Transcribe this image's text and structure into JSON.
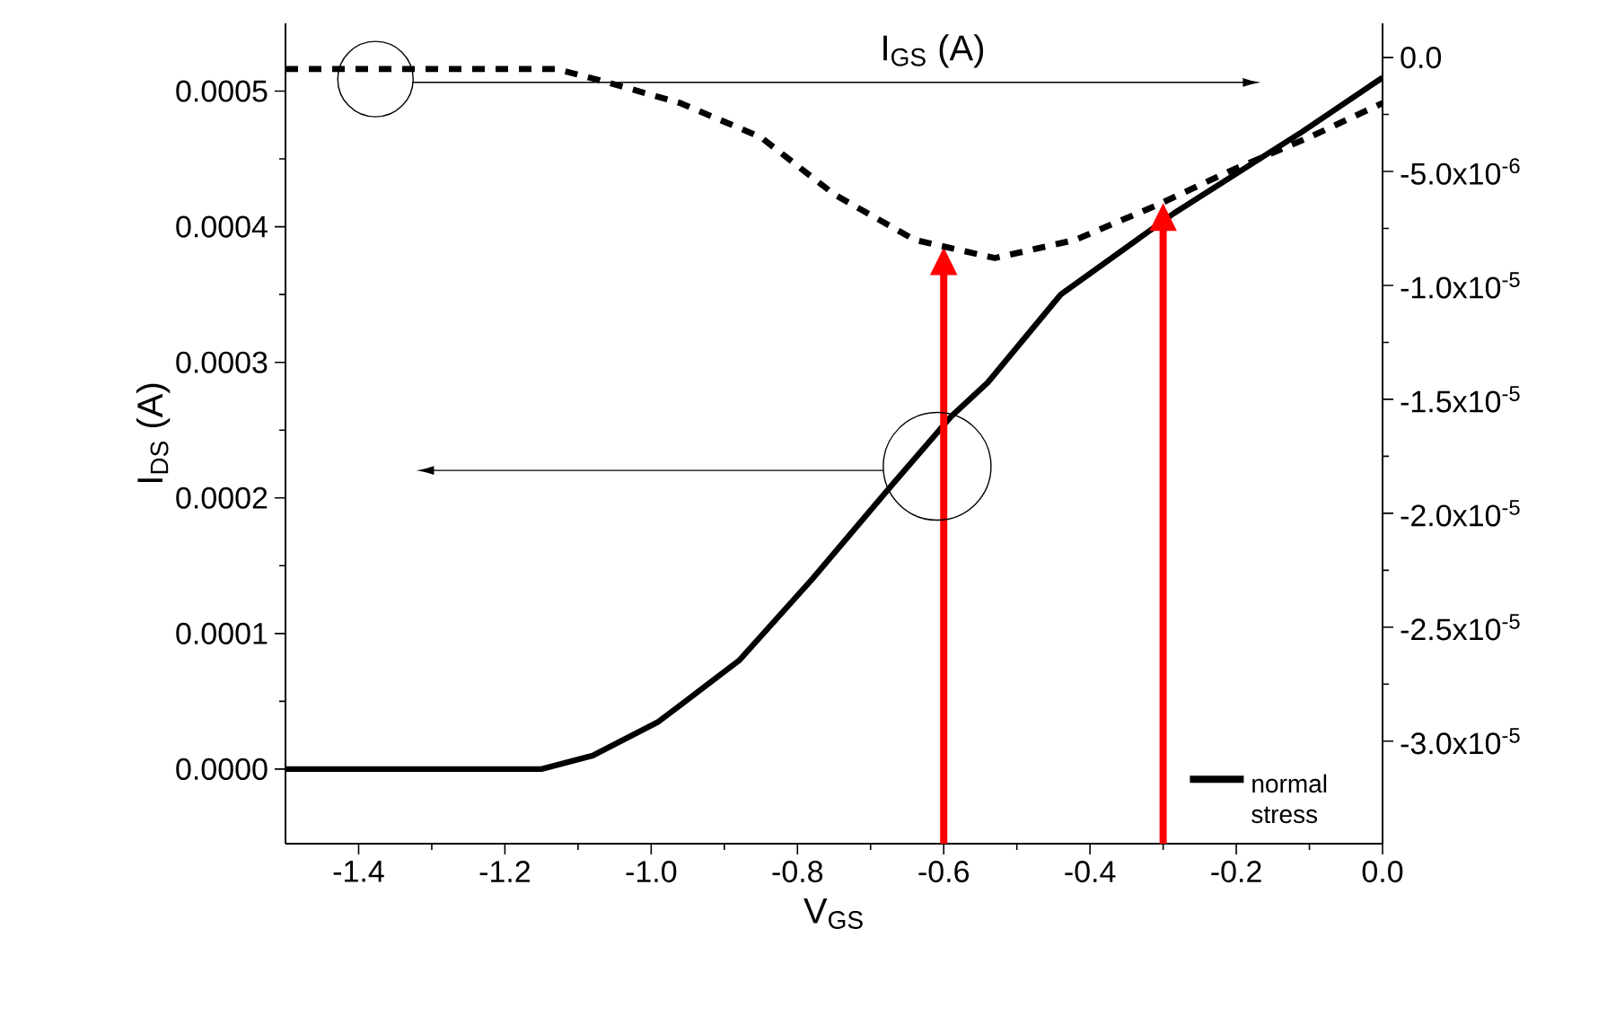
{
  "chart_data": {
    "type": "line",
    "xlabel": "V$_{GS}$",
    "ylabel": "I$_{DS}$ (A)",
    "y2label": "I$_{GS}$ (A)",
    "xlim": [
      -1.5,
      0.0
    ],
    "ylim": [
      -5.5e-05,
      0.00055
    ],
    "y2lim": [
      -3.45e-05,
      1.5e-06
    ],
    "xticks": [
      {
        "value": -1.4,
        "label": "-1.4"
      },
      {
        "value": -1.2,
        "label": "-1.2"
      },
      {
        "value": -1.0,
        "label": "-1.0"
      },
      {
        "value": -0.8,
        "label": "-0.8"
      },
      {
        "value": -0.6,
        "label": "-0.6"
      },
      {
        "value": -0.4,
        "label": "-0.4"
      },
      {
        "value": -0.2,
        "label": "-0.2"
      },
      {
        "value": 0.0,
        "label": "0.0"
      }
    ],
    "yticks": [
      {
        "value": 0.0,
        "label": "0.0000"
      },
      {
        "value": 0.0001,
        "label": "0.0001"
      },
      {
        "value": 0.0002,
        "label": "0.0002"
      },
      {
        "value": 0.0003,
        "label": "0.0003"
      },
      {
        "value": 0.0004,
        "label": "0.0004"
      },
      {
        "value": 0.0005,
        "label": "0.0005"
      }
    ],
    "y2ticks": [
      {
        "value": 0.0,
        "label": "0.0"
      },
      {
        "value": -5e-06,
        "label": "-5.0x10$^{-6}$"
      },
      {
        "value": -1e-05,
        "label": "-1.0x10$^{-5}$"
      },
      {
        "value": -1.5e-05,
        "label": "-1.5x10$^{-5}$"
      },
      {
        "value": -2e-05,
        "label": "-2.0x10$^{-5}$"
      },
      {
        "value": -2.5e-05,
        "label": "-2.5x10$^{-5}$"
      },
      {
        "value": -3e-05,
        "label": "-3.0x10$^{-5}$"
      }
    ],
    "series": [
      {
        "name": "normal stress",
        "color": "#000000",
        "line_style": "solid",
        "x": [
          -1.5,
          -1.2,
          -1.15,
          -1.08,
          -0.99,
          -0.88,
          -0.78,
          -0.67,
          -0.59,
          -0.54,
          -0.44,
          -0.285,
          -0.11,
          0.0
        ],
        "values": [
          0.0,
          0.0,
          0.0,
          1e-05,
          3.5e-05,
          8e-05,
          0.00014,
          0.00021,
          0.00026,
          0.000285,
          0.00035,
          0.00041,
          0.00047,
          0.00051
        ]
      },
      {
        "axis": "y2",
        "color": "#000000",
        "line_style": "dashed",
        "x": [
          -1.5,
          -1.13,
          -1.07,
          -0.96,
          -0.85,
          -0.75,
          -0.64,
          -0.53,
          -0.42,
          -0.31,
          -0.21,
          -0.1,
          0.0
        ],
        "values": [
          -5e-07,
          -5e-07,
          -1e-06,
          -2e-06,
          -3.5e-06,
          -6e-06,
          -8e-06,
          -8.8e-06,
          -8e-06,
          -6.5e-06,
          -5e-06,
          -3.5e-06,
          -2e-06
        ]
      }
    ],
    "ref_lines": [
      {
        "axis": "x",
        "value": -0.6,
        "color": "#ff0000"
      },
      {
        "axis": "x",
        "value": -0.3,
        "color": "#ff0000"
      }
    ],
    "legend": "bottom right",
    "grid": false,
    "marker": "none"
  }
}
